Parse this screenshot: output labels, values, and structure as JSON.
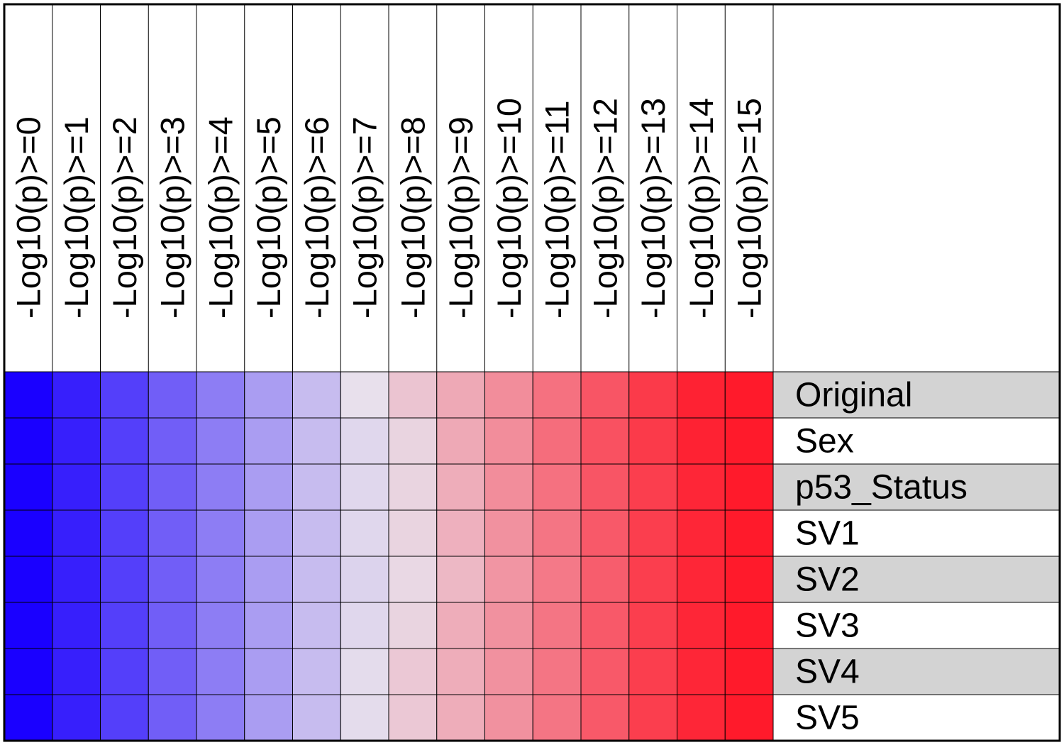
{
  "chart_data": {
    "type": "heatmap",
    "title": "",
    "xlabel": "",
    "ylabel": "",
    "columns": [
      "-Log10(p)>=0",
      "-Log10(p)>=1",
      "-Log10(p)>=2",
      "-Log10(p)>=3",
      "-Log10(p)>=4",
      "-Log10(p)>=5",
      "-Log10(p)>=6",
      "-Log10(p)>=7",
      "-Log10(p)>=8",
      "-Log10(p)>=9",
      "-Log10(p)>=10",
      "-Log10(p)>=11",
      "-Log10(p)>=12",
      "-Log10(p)>=13",
      "-Log10(p)>=14",
      "-Log10(p)>=15"
    ],
    "rows": [
      "Original",
      "Sex",
      "p53_Status",
      "SV1",
      "SV2",
      "SV3",
      "SV4",
      "SV5"
    ],
    "color_scale": {
      "low": "#1a00ff",
      "mid": "#e8e0ec",
      "high": "#ff1a2b"
    },
    "values": [
      [
        0.0,
        0.07,
        0.14,
        0.21,
        0.28,
        0.35,
        0.42,
        0.5,
        0.57,
        0.64,
        0.71,
        0.78,
        0.85,
        0.92,
        0.98,
        1.0
      ],
      [
        0.0,
        0.07,
        0.14,
        0.21,
        0.28,
        0.35,
        0.42,
        0.48,
        0.53,
        0.64,
        0.71,
        0.79,
        0.86,
        0.92,
        0.98,
        1.0
      ],
      [
        0.0,
        0.07,
        0.14,
        0.21,
        0.28,
        0.35,
        0.42,
        0.48,
        0.53,
        0.63,
        0.71,
        0.78,
        0.85,
        0.91,
        0.97,
        1.0
      ],
      [
        0.0,
        0.07,
        0.14,
        0.21,
        0.28,
        0.35,
        0.42,
        0.48,
        0.53,
        0.62,
        0.7,
        0.77,
        0.84,
        0.91,
        0.97,
        1.0
      ],
      [
        0.0,
        0.07,
        0.14,
        0.21,
        0.28,
        0.35,
        0.42,
        0.47,
        0.52,
        0.6,
        0.69,
        0.76,
        0.83,
        0.91,
        0.97,
        1.0
      ],
      [
        0.0,
        0.07,
        0.14,
        0.21,
        0.28,
        0.35,
        0.42,
        0.48,
        0.53,
        0.63,
        0.7,
        0.77,
        0.84,
        0.91,
        0.97,
        1.0
      ],
      [
        0.0,
        0.07,
        0.14,
        0.21,
        0.28,
        0.35,
        0.42,
        0.49,
        0.56,
        0.63,
        0.7,
        0.77,
        0.84,
        0.91,
        0.97,
        1.0
      ],
      [
        0.0,
        0.07,
        0.14,
        0.21,
        0.28,
        0.35,
        0.42,
        0.49,
        0.56,
        0.63,
        0.7,
        0.77,
        0.84,
        0.91,
        0.97,
        1.0
      ]
    ],
    "row_label_shading": [
      "#d3d3d3",
      "#ffffff"
    ],
    "grid": true,
    "legend": "none"
  }
}
